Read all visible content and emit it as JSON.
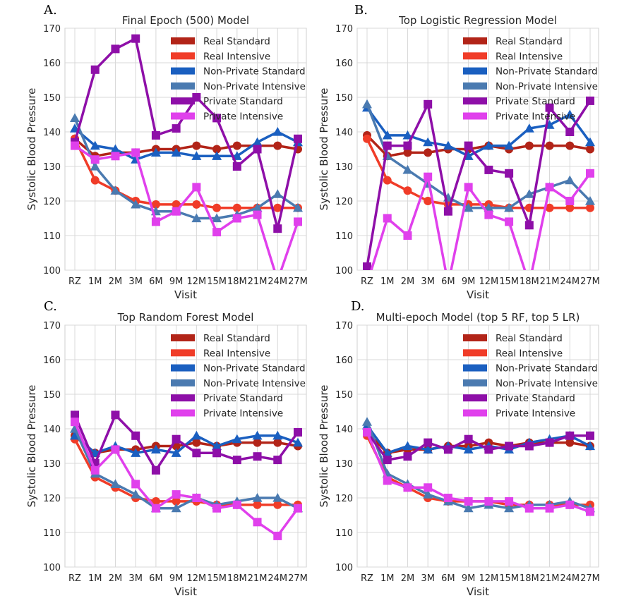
{
  "figure": {
    "ylabel": "Systolic Blood Pressure",
    "xlabel": "Visit"
  },
  "chart_data": [
    {
      "panel": "A.",
      "type": "line",
      "title": "Final Epoch (500) Model",
      "xlabel": "Visit",
      "ylabel": "Systolic Blood Pressure",
      "categories": [
        "RZ",
        "1M",
        "2M",
        "3M",
        "6M",
        "9M",
        "12M",
        "15M",
        "18M",
        "21M",
        "24M",
        "27M"
      ],
      "ylim": [
        100,
        170
      ],
      "yticks": [
        100,
        110,
        120,
        130,
        140,
        150,
        160,
        170
      ],
      "grid": true,
      "legend": "top-right",
      "series": [
        {
          "name": "Real Standard",
          "color": "#b22418",
          "marker": "circle",
          "values": [
            138,
            133,
            134,
            134,
            135,
            135,
            136,
            135,
            136,
            136,
            136,
            135
          ]
        },
        {
          "name": "Real Intensive",
          "color": "#f03c28",
          "marker": "circle",
          "values": [
            138,
            126,
            123,
            120,
            119,
            119,
            119,
            118,
            118,
            118,
            118,
            118
          ]
        },
        {
          "name": "Non-Private Standard",
          "color": "#1a5fc0",
          "marker": "triangle",
          "values": [
            141,
            136,
            135,
            132,
            134,
            134,
            133,
            133,
            133,
            137,
            140,
            137
          ]
        },
        {
          "name": "Non-Private Intensive",
          "color": "#4a7ab0",
          "marker": "triangle",
          "values": [
            144,
            130,
            123,
            119,
            117,
            117,
            115,
            115,
            116,
            118,
            122,
            118
          ]
        },
        {
          "name": "Private Standard",
          "color": "#8e0fa8",
          "marker": "square",
          "values": [
            137,
            158,
            164,
            167,
            139,
            141,
            150,
            144,
            130,
            135,
            112,
            138
          ]
        },
        {
          "name": "Private Intensive",
          "color": "#e040ec",
          "marker": "square",
          "values": [
            136,
            132,
            133,
            134,
            114,
            117,
            124,
            111,
            115,
            116,
            97,
            114
          ]
        }
      ]
    },
    {
      "panel": "B.",
      "type": "line",
      "title": "Top Logistic Regression Model",
      "xlabel": "Visit",
      "ylabel": "Systolic Blood Pressure",
      "categories": [
        "RZ",
        "1M",
        "2M",
        "3M",
        "6M",
        "9M",
        "12M",
        "15M",
        "18M",
        "21M",
        "24M",
        "27M"
      ],
      "ylim": [
        100,
        170
      ],
      "yticks": [
        100,
        110,
        120,
        130,
        140,
        150,
        160,
        170
      ],
      "grid": true,
      "legend": "top-right",
      "series": [
        {
          "name": "Real Standard",
          "color": "#b22418",
          "marker": "circle",
          "values": [
            139,
            133,
            134,
            134,
            135,
            135,
            136,
            135,
            136,
            136,
            136,
            135
          ]
        },
        {
          "name": "Real Intensive",
          "color": "#f03c28",
          "marker": "circle",
          "values": [
            138,
            126,
            123,
            120,
            119,
            119,
            119,
            118,
            118,
            118,
            118,
            118
          ]
        },
        {
          "name": "Non-Private Standard",
          "color": "#1a5fc0",
          "marker": "triangle",
          "values": [
            147,
            139,
            139,
            137,
            136,
            133,
            136,
            136,
            141,
            142,
            145,
            137
          ]
        },
        {
          "name": "Non-Private Intensive",
          "color": "#4a7ab0",
          "marker": "triangle",
          "values": [
            148,
            133,
            129,
            125,
            121,
            118,
            118,
            118,
            122,
            124,
            126,
            120
          ]
        },
        {
          "name": "Private Standard",
          "color": "#8e0fa8",
          "marker": "square",
          "values": [
            101,
            136,
            136,
            148,
            117,
            136,
            129,
            128,
            113,
            147,
            140,
            149
          ]
        },
        {
          "name": "Private Intensive",
          "color": "#e040ec",
          "marker": "square",
          "values": [
            96,
            115,
            110,
            127,
            96,
            124,
            116,
            114,
            96,
            124,
            120,
            128
          ]
        }
      ]
    },
    {
      "panel": "C.",
      "type": "line",
      "title": "Top Random Forest Model",
      "xlabel": "Visit",
      "ylabel": "Systolic Blood Pressure",
      "categories": [
        "RZ",
        "1M",
        "2M",
        "3M",
        "6M",
        "9M",
        "12M",
        "15M",
        "18M",
        "21M",
        "24M",
        "27M"
      ],
      "ylim": [
        100,
        170
      ],
      "yticks": [
        100,
        110,
        120,
        130,
        140,
        150,
        160,
        170
      ],
      "grid": true,
      "legend": "top-right",
      "series": [
        {
          "name": "Real Standard",
          "color": "#b22418",
          "marker": "circle",
          "values": [
            138,
            133,
            134,
            134,
            135,
            135,
            136,
            135,
            136,
            136,
            136,
            135
          ]
        },
        {
          "name": "Real Intensive",
          "color": "#f03c28",
          "marker": "circle",
          "values": [
            137,
            126,
            123,
            120,
            119,
            119,
            119,
            118,
            118,
            118,
            118,
            118
          ]
        },
        {
          "name": "Non-Private Standard",
          "color": "#1a5fc0",
          "marker": "triangle",
          "values": [
            138,
            133,
            135,
            133,
            134,
            133,
            138,
            135,
            137,
            138,
            138,
            136
          ]
        },
        {
          "name": "Non-Private Intensive",
          "color": "#4a7ab0",
          "marker": "triangle",
          "values": [
            140,
            127,
            124,
            121,
            117,
            117,
            120,
            118,
            119,
            120,
            120,
            117
          ]
        },
        {
          "name": "Private Standard",
          "color": "#8e0fa8",
          "marker": "square",
          "values": [
            144,
            130,
            144,
            138,
            128,
            137,
            133,
            133,
            131,
            132,
            131,
            139
          ]
        },
        {
          "name": "Private Intensive",
          "color": "#e040ec",
          "marker": "square",
          "values": [
            142,
            128,
            134,
            124,
            117,
            121,
            120,
            117,
            118,
            113,
            109,
            117
          ]
        }
      ]
    },
    {
      "panel": "D.",
      "type": "line",
      "title": "Multi-epoch Model (top 5 RF, top 5 LR)",
      "xlabel": "Visit",
      "ylabel": "Systolic Blood Pressure",
      "categories": [
        "RZ",
        "1M",
        "2M",
        "3M",
        "6M",
        "9M",
        "12M",
        "15M",
        "18M",
        "21M",
        "24M",
        "27M"
      ],
      "ylim": [
        100,
        170
      ],
      "yticks": [
        100,
        110,
        120,
        130,
        140,
        150,
        160,
        170
      ],
      "grid": true,
      "legend": "top-right",
      "series": [
        {
          "name": "Real Standard",
          "color": "#b22418",
          "marker": "circle",
          "values": [
            139,
            133,
            134,
            134,
            135,
            135,
            136,
            135,
            136,
            136,
            136,
            135
          ]
        },
        {
          "name": "Real Intensive",
          "color": "#f03c28",
          "marker": "circle",
          "values": [
            138,
            126,
            123,
            120,
            119,
            119,
            119,
            118,
            118,
            118,
            118,
            118
          ]
        },
        {
          "name": "Non-Private Standard",
          "color": "#1a5fc0",
          "marker": "triangle",
          "values": [
            141,
            133,
            135,
            134,
            135,
            134,
            135,
            134,
            136,
            137,
            138,
            135
          ]
        },
        {
          "name": "Non-Private Intensive",
          "color": "#4a7ab0",
          "marker": "triangle",
          "values": [
            142,
            127,
            124,
            121,
            119,
            117,
            118,
            117,
            118,
            118,
            119,
            117
          ]
        },
        {
          "name": "Private Standard",
          "color": "#8e0fa8",
          "marker": "square",
          "values": [
            139,
            131,
            132,
            136,
            134,
            137,
            134,
            135,
            135,
            136,
            138,
            138
          ]
        },
        {
          "name": "Private Intensive",
          "color": "#e040ec",
          "marker": "square",
          "values": [
            139,
            125,
            123,
            123,
            120,
            119,
            119,
            119,
            117,
            117,
            118,
            116
          ]
        }
      ]
    }
  ]
}
